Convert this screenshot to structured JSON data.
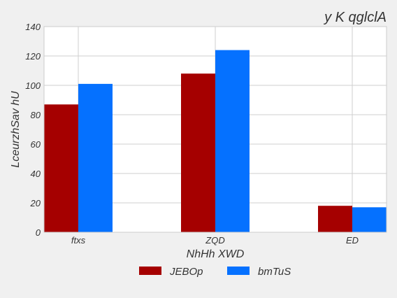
{
  "chart_data": {
    "type": "bar",
    "title": "y K qglclA",
    "xlabel": "NhHh XWD",
    "ylabel": "LceurzhSav hU",
    "categories": [
      "ftxs",
      "ZQD",
      "ED"
    ],
    "series": [
      {
        "name": "JEBOp",
        "color": "#a50000",
        "values": [
          87,
          108,
          18
        ]
      },
      {
        "name": "bmTuS",
        "color": "#0571ff",
        "values": [
          101,
          124,
          17
        ]
      }
    ],
    "ylim": [
      0,
      140
    ],
    "yticks": [
      0,
      20,
      40,
      60,
      80,
      100,
      120,
      140
    ],
    "grid": true,
    "legend_position": "bottom-center"
  }
}
